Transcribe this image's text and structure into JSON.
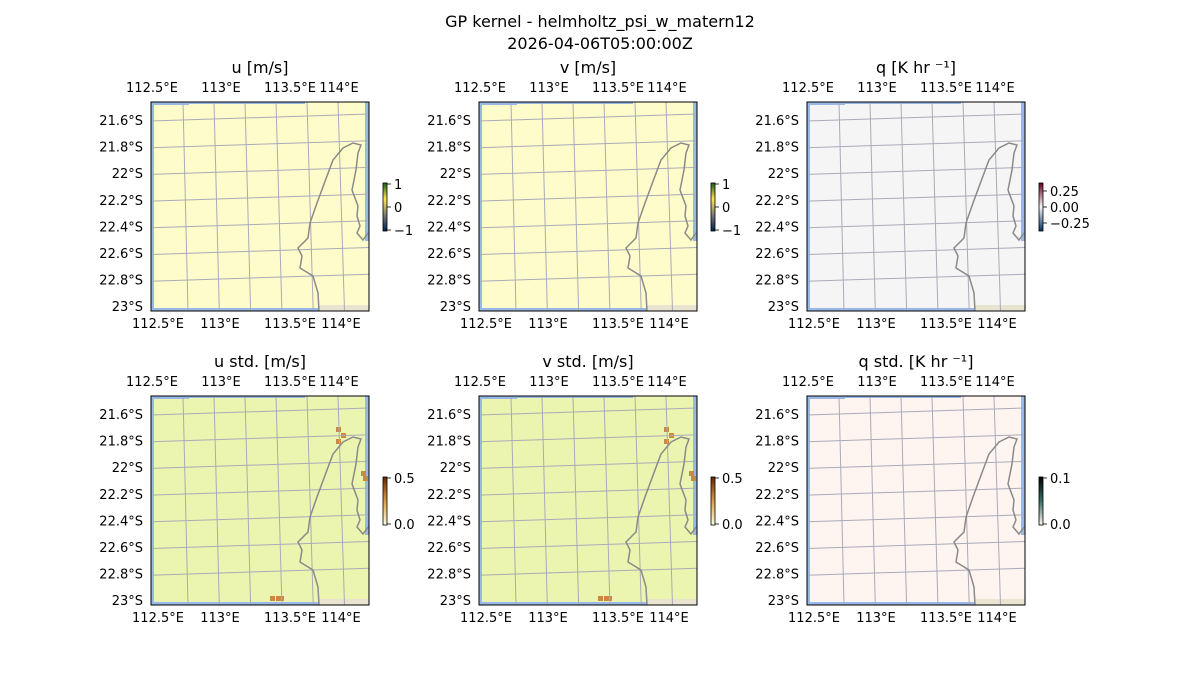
{
  "suptitle": "GP kernel - helmholtz_psi_w_matern12",
  "timestamp": "2026-04-06T05:00:00Z",
  "chart_data": [
    {
      "type": "heatmap",
      "title": "u [m/s]",
      "fill": "#fffccc",
      "colorbar": {
        "ticks": [
          "1",
          "0",
          "−1"
        ],
        "range": [
          -1,
          1
        ],
        "colors": [
          "#00204c",
          "#7c7b78",
          "#ffe945",
          "#1b5e20"
        ]
      },
      "anomalies": false
    },
    {
      "type": "heatmap",
      "title": "v [m/s]",
      "fill": "#fffccc",
      "colorbar": {
        "ticks": [
          "1",
          "0",
          "−1"
        ],
        "range": [
          -1,
          1
        ],
        "colors": [
          "#00204c",
          "#7c7b78",
          "#ffe945",
          "#1b5e20"
        ]
      },
      "anomalies": false
    },
    {
      "type": "heatmap",
      "title": "q [K hr ⁻¹]",
      "fill": "#f5f5f5",
      "colorbar": {
        "ticks": [
          "0.25",
          "0.00",
          "−0.25"
        ],
        "range": [
          -0.25,
          0.25
        ],
        "colors": [
          "#053061",
          "#f7f7f7",
          "#67001f"
        ]
      },
      "anomalies": false
    },
    {
      "type": "heatmap",
      "title": "u std. [m/s]",
      "fill": "#ebf5b0",
      "colorbar": {
        "ticks": [
          "0.5",
          "0.0"
        ],
        "range": [
          0,
          0.5
        ],
        "colors": [
          "#ffffe5",
          "#d9a040",
          "#662506"
        ]
      },
      "anomalies": true
    },
    {
      "type": "heatmap",
      "title": "v std. [m/s]",
      "fill": "#ebf5b0",
      "colorbar": {
        "ticks": [
          "0.5",
          "0.0"
        ],
        "range": [
          0,
          0.5
        ],
        "colors": [
          "#ffffe5",
          "#d9a040",
          "#662506"
        ]
      },
      "anomalies": true
    },
    {
      "type": "heatmap",
      "title": "q std. [K hr ⁻¹]",
      "fill": "#fff5f0",
      "colorbar": {
        "ticks": [
          "0.1",
          "0.0"
        ],
        "range": [
          0,
          0.1
        ],
        "colors": [
          "#fff5f0",
          "#3a6f66",
          "#000000"
        ]
      },
      "anomalies": false
    }
  ],
  "axes": {
    "lon_ticks": [
      "112.5°E",
      "113°E",
      "113.5°E",
      "114°E"
    ],
    "lat_ticks": [
      "21.6°S",
      "21.8°S",
      "22°S",
      "22.2°S",
      "22.4°S",
      "22.6°S",
      "22.8°S",
      "23°S"
    ]
  },
  "colors": {
    "ocean": "#99b8e6",
    "coast": "#8a8a8a",
    "grid": "#aaaabb",
    "land_edge": "#e8e4d0",
    "anomaly": "#c98a3e"
  }
}
